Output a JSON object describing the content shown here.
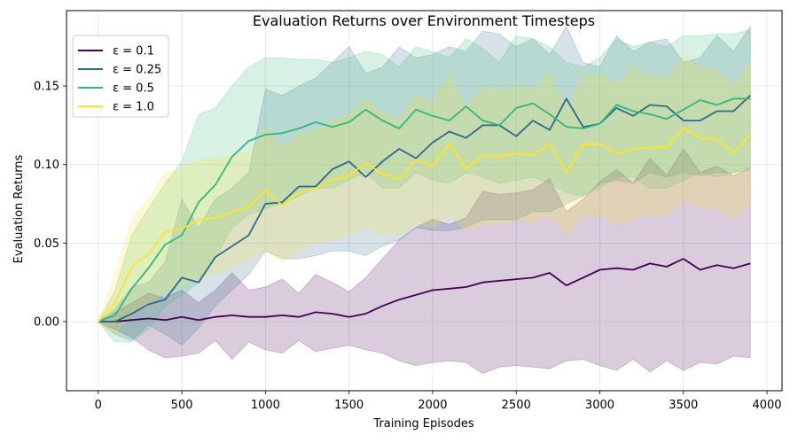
{
  "chart_data": {
    "type": "line",
    "title": "Evaluation Returns over Environment Timesteps",
    "xlabel": "Training Episodes",
    "ylabel": "Evaluation Returns",
    "xlim": [
      -190,
      4090
    ],
    "ylim": [
      -0.044,
      0.198
    ],
    "xticks": [
      0,
      500,
      1000,
      1500,
      2000,
      2500,
      3000,
      3500,
      4000
    ],
    "yticks": [
      0.0,
      0.05,
      0.1,
      0.15
    ],
    "ytick_labels": [
      "0.00",
      "0.05",
      "0.10",
      "0.15"
    ],
    "grid": true,
    "legend_position": "top-left",
    "x": [
      0,
      100,
      200,
      300,
      400,
      500,
      600,
      700,
      800,
      900,
      1000,
      1100,
      1200,
      1300,
      1400,
      1500,
      1600,
      1700,
      1800,
      1900,
      2000,
      2100,
      2200,
      2300,
      2400,
      2500,
      2600,
      2700,
      2800,
      2900,
      3000,
      3100,
      3200,
      3300,
      3400,
      3500,
      3600,
      3700,
      3800,
      3900
    ],
    "series": [
      {
        "name": "ε = 0.1",
        "color": "#440154",
        "values": [
          0.0,
          0.0,
          0.001,
          0.002,
          0.001,
          0.003,
          0.001,
          0.003,
          0.004,
          0.003,
          0.003,
          0.004,
          0.003,
          0.006,
          0.005,
          0.003,
          0.005,
          0.01,
          0.014,
          0.017,
          0.02,
          0.021,
          0.022,
          0.025,
          0.026,
          0.027,
          0.028,
          0.031,
          0.023,
          0.028,
          0.033,
          0.034,
          0.033,
          0.037,
          0.035,
          0.04,
          0.033,
          0.036,
          0.034,
          0.037
        ],
        "lower": [
          0.0,
          -0.005,
          -0.01,
          -0.018,
          -0.023,
          -0.022,
          -0.02,
          -0.012,
          -0.024,
          -0.013,
          -0.018,
          -0.02,
          -0.012,
          -0.019,
          -0.017,
          -0.015,
          -0.018,
          -0.02,
          -0.025,
          -0.028,
          -0.026,
          -0.025,
          -0.026,
          -0.033,
          -0.029,
          -0.028,
          -0.029,
          -0.03,
          -0.025,
          -0.024,
          -0.028,
          -0.031,
          -0.024,
          -0.032,
          -0.025,
          -0.031,
          -0.026,
          -0.027,
          -0.022,
          -0.023
        ],
        "upper": [
          0.0,
          0.006,
          0.012,
          0.018,
          0.015,
          0.02,
          0.012,
          0.02,
          0.031,
          0.02,
          0.022,
          0.027,
          0.018,
          0.03,
          0.025,
          0.019,
          0.028,
          0.04,
          0.052,
          0.06,
          0.065,
          0.062,
          0.066,
          0.083,
          0.081,
          0.082,
          0.084,
          0.091,
          0.07,
          0.078,
          0.089,
          0.097,
          0.088,
          0.104,
          0.093,
          0.11,
          0.095,
          0.099,
          0.093,
          0.098
        ]
      },
      {
        "name": "ε = 0.25",
        "color": "#31688e",
        "values": [
          0.0,
          0.0,
          0.005,
          0.011,
          0.014,
          0.028,
          0.025,
          0.041,
          0.048,
          0.055,
          0.075,
          0.076,
          0.086,
          0.086,
          0.097,
          0.102,
          0.092,
          0.102,
          0.11,
          0.104,
          0.114,
          0.121,
          0.117,
          0.125,
          0.125,
          0.118,
          0.128,
          0.122,
          0.142,
          0.124,
          0.126,
          0.136,
          0.131,
          0.138,
          0.137,
          0.128,
          0.128,
          0.134,
          0.134,
          0.144
        ],
        "lower": [
          0.0,
          -0.008,
          -0.012,
          -0.002,
          -0.008,
          -0.015,
          -0.004,
          0.01,
          0.02,
          0.03,
          0.045,
          0.04,
          0.04,
          0.042,
          0.045,
          0.045,
          0.042,
          0.048,
          0.052,
          0.06,
          0.058,
          0.058,
          0.06,
          0.065,
          0.065,
          0.065,
          0.07,
          0.07,
          0.075,
          0.08,
          0.088,
          0.09,
          0.088,
          0.095,
          0.092,
          0.095,
          0.093,
          0.095,
          0.095,
          0.098
        ],
        "upper": [
          0.0,
          0.008,
          0.022,
          0.025,
          0.038,
          0.078,
          0.06,
          0.078,
          0.085,
          0.095,
          0.148,
          0.144,
          0.15,
          0.155,
          0.165,
          0.175,
          0.158,
          0.162,
          0.175,
          0.168,
          0.17,
          0.175,
          0.172,
          0.185,
          0.183,
          0.175,
          0.18,
          0.17,
          0.188,
          0.165,
          0.162,
          0.182,
          0.172,
          0.178,
          0.18,
          0.165,
          0.168,
          0.182,
          0.172,
          0.188
        ]
      },
      {
        "name": "ε = 0.5",
        "color": "#35b779",
        "values": [
          0.0,
          0.004,
          0.021,
          0.034,
          0.049,
          0.055,
          0.076,
          0.087,
          0.105,
          0.115,
          0.119,
          0.12,
          0.123,
          0.127,
          0.124,
          0.127,
          0.135,
          0.128,
          0.123,
          0.135,
          0.131,
          0.128,
          0.137,
          0.128,
          0.125,
          0.136,
          0.139,
          0.132,
          0.124,
          0.123,
          0.126,
          0.138,
          0.134,
          0.132,
          0.129,
          0.135,
          0.141,
          0.138,
          0.142,
          0.142
        ],
        "lower": [
          0.0,
          -0.013,
          -0.013,
          -0.005,
          0.01,
          0.017,
          0.025,
          0.04,
          0.06,
          0.068,
          0.072,
          0.075,
          0.08,
          0.085,
          0.085,
          0.09,
          0.095,
          0.085,
          0.085,
          0.095,
          0.09,
          0.088,
          0.095,
          0.092,
          0.088,
          0.09,
          0.092,
          0.088,
          0.082,
          0.08,
          0.085,
          0.092,
          0.092,
          0.085,
          0.085,
          0.09,
          0.095,
          0.092,
          0.095,
          0.096
        ],
        "upper": [
          0.0,
          0.02,
          0.055,
          0.072,
          0.088,
          0.102,
          0.132,
          0.136,
          0.15,
          0.162,
          0.168,
          0.168,
          0.167,
          0.167,
          0.165,
          0.168,
          0.172,
          0.17,
          0.162,
          0.175,
          0.172,
          0.168,
          0.18,
          0.174,
          0.165,
          0.182,
          0.18,
          0.175,
          0.165,
          0.162,
          0.168,
          0.18,
          0.175,
          0.178,
          0.175,
          0.182,
          0.182,
          0.183,
          0.183,
          0.186
        ]
      },
      {
        "name": "ε = 1.0",
        "color": "#fde725",
        "values": [
          0.0,
          0.012,
          0.035,
          0.043,
          0.057,
          0.059,
          0.065,
          0.066,
          0.07,
          0.073,
          0.084,
          0.074,
          0.082,
          0.085,
          0.09,
          0.093,
          0.101,
          0.094,
          0.091,
          0.103,
          0.099,
          0.113,
          0.097,
          0.106,
          0.105,
          0.107,
          0.106,
          0.113,
          0.095,
          0.113,
          0.113,
          0.107,
          0.11,
          0.111,
          0.111,
          0.123,
          0.117,
          0.116,
          0.107,
          0.119
        ],
        "lower": [
          0.0,
          -0.008,
          0.005,
          0.01,
          0.02,
          0.023,
          0.028,
          0.03,
          0.035,
          0.04,
          0.045,
          0.038,
          0.045,
          0.05,
          0.052,
          0.055,
          0.06,
          0.055,
          0.055,
          0.062,
          0.06,
          0.068,
          0.058,
          0.062,
          0.062,
          0.065,
          0.063,
          0.068,
          0.055,
          0.068,
          0.068,
          0.062,
          0.065,
          0.068,
          0.068,
          0.078,
          0.072,
          0.072,
          0.065,
          0.075
        ],
        "upper": [
          0.0,
          0.03,
          0.065,
          0.078,
          0.095,
          0.097,
          0.103,
          0.104,
          0.106,
          0.108,
          0.123,
          0.111,
          0.119,
          0.122,
          0.128,
          0.131,
          0.142,
          0.133,
          0.128,
          0.145,
          0.139,
          0.158,
          0.136,
          0.149,
          0.147,
          0.15,
          0.148,
          0.158,
          0.135,
          0.157,
          0.158,
          0.151,
          0.163,
          0.155,
          0.155,
          0.168,
          0.162,
          0.16,
          0.15,
          0.165
        ]
      }
    ]
  }
}
